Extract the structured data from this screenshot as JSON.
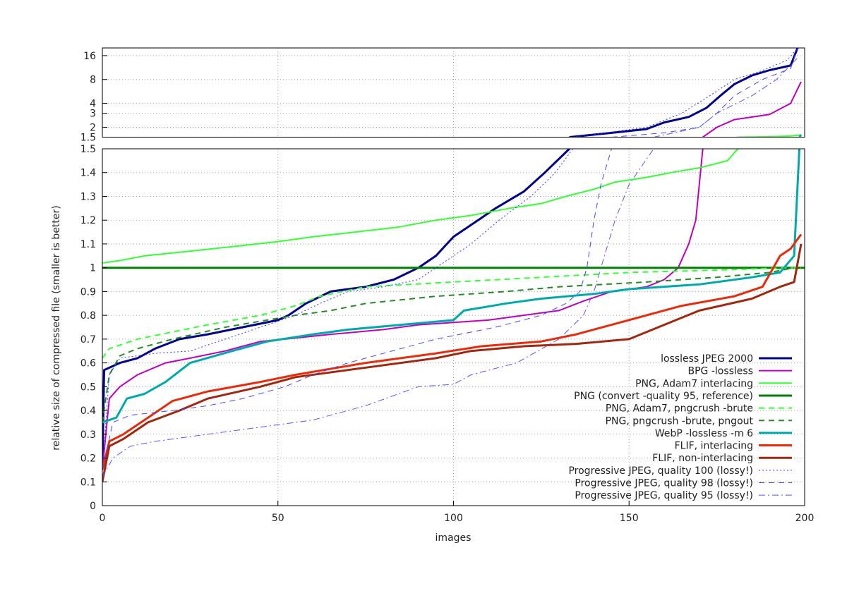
{
  "chart_data": {
    "type": "line",
    "title": "",
    "xlabel": "images",
    "ylabel": "relative size of compressed file (smaller is better)",
    "xlim": [
      0,
      200
    ],
    "x_ticks": [
      0,
      50,
      100,
      150,
      200
    ],
    "lower_panel": {
      "scale": "linear",
      "ylim": [
        0,
        1.5
      ],
      "y_ticks": [
        0,
        0.1,
        0.2,
        0.3,
        0.4,
        0.5,
        0.6,
        0.7,
        0.8,
        0.9,
        1,
        1.1,
        1.2,
        1.3,
        1.4,
        1.5
      ]
    },
    "upper_panel": {
      "scale": "log",
      "ylim": [
        1.5,
        20
      ],
      "y_ticks": [
        1.5,
        2,
        3,
        4,
        8,
        16
      ]
    },
    "grid": true,
    "legend_position": "bottom-right",
    "series": [
      {
        "name": "lossless JPEG 2000",
        "color": "#00008b",
        "style": "solid",
        "width": 3,
        "points": [
          [
            0,
            0.15
          ],
          [
            0.5,
            0.57
          ],
          [
            5,
            0.6
          ],
          [
            10,
            0.62
          ],
          [
            15,
            0.66
          ],
          [
            22,
            0.7
          ],
          [
            30,
            0.72
          ],
          [
            40,
            0.75
          ],
          [
            50,
            0.78
          ],
          [
            53,
            0.8
          ],
          [
            58,
            0.85
          ],
          [
            65,
            0.9
          ],
          [
            75,
            0.92
          ],
          [
            83,
            0.95
          ],
          [
            90,
            1.0
          ],
          [
            95,
            1.05
          ],
          [
            100,
            1.13
          ],
          [
            107,
            1.2
          ],
          [
            112,
            1.25
          ],
          [
            120,
            1.32
          ],
          [
            126,
            1.4
          ],
          [
            133,
            1.5
          ],
          [
            145,
            1.7
          ],
          [
            155,
            1.9
          ],
          [
            160,
            2.3
          ],
          [
            167,
            2.7
          ],
          [
            172,
            3.5
          ],
          [
            176,
            5
          ],
          [
            180,
            7
          ],
          [
            185,
            9
          ],
          [
            190,
            10.5
          ],
          [
            196,
            12
          ],
          [
            198,
            20
          ]
        ]
      },
      {
        "name": "BPG -lossless",
        "color": "#c000c0",
        "style": "solid",
        "width": 2,
        "points": [
          [
            0,
            0.15
          ],
          [
            2,
            0.45
          ],
          [
            5,
            0.5
          ],
          [
            10,
            0.55
          ],
          [
            18,
            0.6
          ],
          [
            25,
            0.62
          ],
          [
            35,
            0.65
          ],
          [
            45,
            0.69
          ],
          [
            52,
            0.7
          ],
          [
            65,
            0.72
          ],
          [
            80,
            0.74
          ],
          [
            90,
            0.76
          ],
          [
            100,
            0.77
          ],
          [
            110,
            0.78
          ],
          [
            120,
            0.8
          ],
          [
            130,
            0.82
          ],
          [
            137,
            0.86
          ],
          [
            145,
            0.9
          ],
          [
            155,
            0.92
          ],
          [
            160,
            0.95
          ],
          [
            164,
            1.0
          ],
          [
            167,
            1.1
          ],
          [
            169,
            1.2
          ],
          [
            171,
            1.5
          ],
          [
            175,
            2
          ],
          [
            180,
            2.5
          ],
          [
            190,
            2.9
          ],
          [
            196,
            4
          ],
          [
            199,
            7.5
          ]
        ]
      },
      {
        "name": "PNG, Adam7 interlacing",
        "color": "#33ff33",
        "style": "solid",
        "width": 2,
        "points": [
          [
            0,
            1.02
          ],
          [
            5,
            1.03
          ],
          [
            12,
            1.05
          ],
          [
            25,
            1.07
          ],
          [
            38,
            1.09
          ],
          [
            50,
            1.11
          ],
          [
            60,
            1.13
          ],
          [
            72,
            1.15
          ],
          [
            84,
            1.17
          ],
          [
            95,
            1.2
          ],
          [
            105,
            1.22
          ],
          [
            116,
            1.25
          ],
          [
            125,
            1.27
          ],
          [
            132,
            1.3
          ],
          [
            140,
            1.33
          ],
          [
            146,
            1.36
          ],
          [
            155,
            1.38
          ],
          [
            162,
            1.4
          ],
          [
            170,
            1.42
          ],
          [
            178,
            1.45
          ],
          [
            181,
            1.5
          ],
          [
            190,
            1.52
          ],
          [
            196,
            1.55
          ],
          [
            199,
            1.6
          ]
        ]
      },
      {
        "name": "PNG (convert -quality 95, reference)",
        "color": "#008000",
        "style": "solid",
        "width": 3,
        "points": [
          [
            0,
            1.0
          ],
          [
            200,
            1.0
          ]
        ]
      },
      {
        "name": "PNG, Adam7, pngcrush -brute",
        "color": "#33ff33",
        "style": "dashed",
        "width": 2,
        "points": [
          [
            0,
            0.62
          ],
          [
            2,
            0.66
          ],
          [
            10,
            0.7
          ],
          [
            20,
            0.73
          ],
          [
            30,
            0.76
          ],
          [
            45,
            0.8
          ],
          [
            55,
            0.84
          ],
          [
            62,
            0.88
          ],
          [
            75,
            0.92
          ],
          [
            100,
            0.94
          ],
          [
            125,
            0.96
          ],
          [
            150,
            0.98
          ],
          [
            175,
            0.99
          ],
          [
            195,
            1.0
          ],
          [
            199,
            1.0
          ]
        ]
      },
      {
        "name": "PNG, pngcrush -brute, pngout",
        "color": "#228b22",
        "style": "dashed",
        "width": 2,
        "points": [
          [
            0,
            0.35
          ],
          [
            2,
            0.55
          ],
          [
            5,
            0.63
          ],
          [
            10,
            0.66
          ],
          [
            20,
            0.7
          ],
          [
            35,
            0.75
          ],
          [
            55,
            0.8
          ],
          [
            65,
            0.82
          ],
          [
            75,
            0.85
          ],
          [
            95,
            0.88
          ],
          [
            115,
            0.9
          ],
          [
            130,
            0.92
          ],
          [
            155,
            0.94
          ],
          [
            175,
            0.96
          ],
          [
            190,
            0.98
          ],
          [
            197,
            1.0
          ]
        ]
      },
      {
        "name": "WebP -lossless -m 6",
        "color": "#00aaaa",
        "style": "solid",
        "width": 3,
        "points": [
          [
            0,
            0.35
          ],
          [
            4,
            0.37
          ],
          [
            7,
            0.45
          ],
          [
            12,
            0.47
          ],
          [
            18,
            0.52
          ],
          [
            25,
            0.6
          ],
          [
            37,
            0.65
          ],
          [
            47,
            0.69
          ],
          [
            60,
            0.72
          ],
          [
            70,
            0.74
          ],
          [
            85,
            0.76
          ],
          [
            100,
            0.78
          ],
          [
            103,
            0.82
          ],
          [
            115,
            0.85
          ],
          [
            125,
            0.87
          ],
          [
            140,
            0.89
          ],
          [
            150,
            0.91
          ],
          [
            170,
            0.93
          ],
          [
            185,
            0.96
          ],
          [
            193,
            0.98
          ],
          [
            197,
            1.05
          ],
          [
            198.5,
            1.5
          ],
          [
            199,
            1.6
          ]
        ]
      },
      {
        "name": "FLIF, interlacing",
        "color": "#e62c0c",
        "style": "solid",
        "width": 3,
        "points": [
          [
            0,
            0.15
          ],
          [
            2,
            0.27
          ],
          [
            6,
            0.3
          ],
          [
            13,
            0.37
          ],
          [
            20,
            0.44
          ],
          [
            30,
            0.48
          ],
          [
            45,
            0.52
          ],
          [
            55,
            0.55
          ],
          [
            75,
            0.6
          ],
          [
            95,
            0.64
          ],
          [
            108,
            0.67
          ],
          [
            125,
            0.69
          ],
          [
            135,
            0.72
          ],
          [
            145,
            0.76
          ],
          [
            155,
            0.8
          ],
          [
            165,
            0.84
          ],
          [
            180,
            0.88
          ],
          [
            188,
            0.92
          ],
          [
            193,
            1.05
          ],
          [
            196,
            1.08
          ],
          [
            199,
            1.14
          ]
        ]
      },
      {
        "name": "FLIF, non-interlacing",
        "color": "#a02810",
        "style": "solid",
        "width": 3,
        "points": [
          [
            0,
            0.1
          ],
          [
            2,
            0.25
          ],
          [
            6,
            0.28
          ],
          [
            13,
            0.35
          ],
          [
            22,
            0.4
          ],
          [
            30,
            0.45
          ],
          [
            45,
            0.5
          ],
          [
            55,
            0.54
          ],
          [
            75,
            0.58
          ],
          [
            95,
            0.62
          ],
          [
            105,
            0.65
          ],
          [
            120,
            0.67
          ],
          [
            135,
            0.68
          ],
          [
            150,
            0.7
          ],
          [
            160,
            0.76
          ],
          [
            170,
            0.82
          ],
          [
            185,
            0.87
          ],
          [
            193,
            0.92
          ],
          [
            197,
            0.94
          ],
          [
            199,
            1.1
          ]
        ]
      },
      {
        "name": "Progressive JPEG, quality 100 (lossy!)",
        "color": "#3333ff",
        "style": "dotted",
        "width": 1,
        "points": [
          [
            0,
            0.15
          ],
          [
            2,
            0.55
          ],
          [
            5,
            0.62
          ],
          [
            15,
            0.64
          ],
          [
            25,
            0.65
          ],
          [
            35,
            0.7
          ],
          [
            45,
            0.75
          ],
          [
            55,
            0.8
          ],
          [
            62,
            0.85
          ],
          [
            70,
            0.9
          ],
          [
            80,
            0.92
          ],
          [
            90,
            0.95
          ],
          [
            100,
            1.05
          ],
          [
            105,
            1.1
          ],
          [
            113,
            1.2
          ],
          [
            122,
            1.3
          ],
          [
            129,
            1.4
          ],
          [
            134,
            1.5
          ],
          [
            155,
            2
          ],
          [
            165,
            3
          ],
          [
            173,
            5
          ],
          [
            180,
            8
          ],
          [
            187,
            10
          ],
          [
            195,
            14
          ],
          [
            198,
            20
          ]
        ]
      },
      {
        "name": "Progressive JPEG, quality 98 (lossy!)",
        "color": "#4444ff",
        "style": "dashed",
        "width": 1,
        "points": [
          [
            0,
            0.15
          ],
          [
            3,
            0.35
          ],
          [
            8,
            0.38
          ],
          [
            20,
            0.4
          ],
          [
            30,
            0.42
          ],
          [
            40,
            0.45
          ],
          [
            52,
            0.5
          ],
          [
            60,
            0.55
          ],
          [
            70,
            0.6
          ],
          [
            85,
            0.66
          ],
          [
            95,
            0.7
          ],
          [
            112,
            0.75
          ],
          [
            125,
            0.8
          ],
          [
            132,
            0.85
          ],
          [
            136,
            0.9
          ],
          [
            138,
            1.0
          ],
          [
            140,
            1.2
          ],
          [
            142,
            1.35
          ],
          [
            145,
            1.5
          ],
          [
            160,
            1.7
          ],
          [
            170,
            2
          ],
          [
            175,
            3
          ],
          [
            180,
            5
          ],
          [
            188,
            8
          ],
          [
            196,
            11
          ],
          [
            198,
            20
          ]
        ]
      },
      {
        "name": "Progressive JPEG, quality 95 (lossy!)",
        "color": "#5555ff",
        "style": "dashdot",
        "width": 1,
        "points": [
          [
            0,
            0.12
          ],
          [
            3,
            0.2
          ],
          [
            8,
            0.25
          ],
          [
            15,
            0.27
          ],
          [
            30,
            0.3
          ],
          [
            45,
            0.33
          ],
          [
            60,
            0.36
          ],
          [
            75,
            0.42
          ],
          [
            90,
            0.5
          ],
          [
            100,
            0.51
          ],
          [
            105,
            0.55
          ],
          [
            118,
            0.6
          ],
          [
            130,
            0.7
          ],
          [
            137,
            0.8
          ],
          [
            140,
            0.9
          ],
          [
            142,
            1.0
          ],
          [
            146,
            1.2
          ],
          [
            150,
            1.35
          ],
          [
            157,
            1.5
          ],
          [
            170,
            2
          ],
          [
            175,
            3
          ],
          [
            185,
            5
          ],
          [
            192,
            8
          ],
          [
            198,
            15
          ]
        ]
      }
    ]
  }
}
